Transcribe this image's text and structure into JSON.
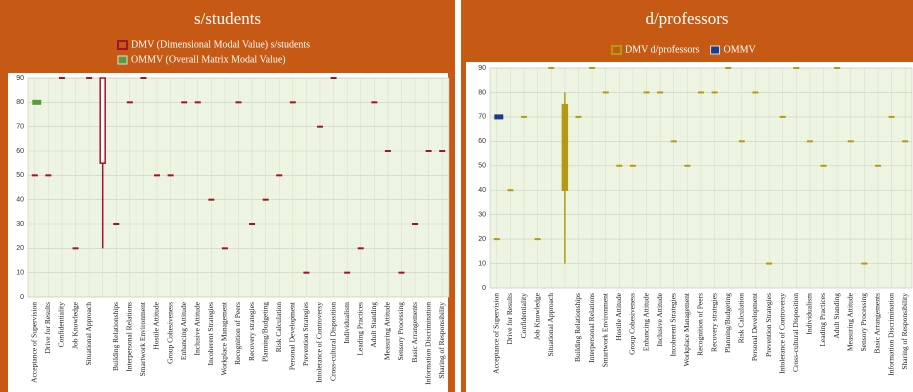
{
  "chart_data": [
    {
      "type": "marker",
      "title": "s/students",
      "categories": [
        "Acceptance of Supervision",
        "Drive for Results",
        "Confidentiality",
        "Job Knowledge",
        "Situational Approach",
        null,
        "Building Relationships",
        "Interpersonal Relations",
        "Smartwork Environment",
        "Hostile Attitude",
        "Group Cohesiveness",
        "Enhancing Attitude",
        "Inclusive Attitude",
        "Incoherent Strategies",
        "Workplace Management",
        "Recognition of Peers",
        "Recovery strategies",
        "Planning/Budgeting",
        "Risk Calculation",
        "Personal Development",
        "Prevention Strategies",
        "Intolerance of Controversy",
        "Cross-cultural Disposition",
        "Individualism",
        "Leading Practices",
        "Adult Standing",
        "Measuring Attitude",
        "Sensory Processing",
        "Basic Arrangements",
        "Information Discrimination",
        "Sharing of Responsibility"
      ],
      "series": [
        {
          "name": "DMV (Dimensional Modal Value) s/students",
          "color": "#a3122e",
          "values": [
            50,
            50,
            90,
            20,
            90,
            null,
            30,
            80,
            90,
            50,
            50,
            80,
            80,
            40,
            20,
            80,
            30,
            40,
            50,
            80,
            10,
            70,
            90,
            10,
            20,
            80,
            60,
            10,
            30,
            60,
            60
          ],
          "box": {
            "low": 20,
            "q1": 55,
            "q3": 90,
            "high": 90
          }
        },
        {
          "name": "OMMV (Overall Matrix Modal Value)",
          "color": "#5a9a3a",
          "values": [
            80,
            null,
            null,
            null,
            null,
            null,
            null,
            null,
            null,
            null,
            null,
            null,
            null,
            null,
            null,
            null,
            null,
            null,
            null,
            null,
            null,
            null,
            null,
            null,
            null,
            null,
            null,
            null,
            null,
            null,
            null
          ]
        }
      ],
      "ylim": [
        0,
        90
      ],
      "yticks": [
        0,
        10,
        20,
        30,
        40,
        50,
        60,
        70,
        80,
        90
      ],
      "grid": true,
      "legend": "top"
    },
    {
      "type": "marker",
      "title": "d/professors",
      "categories": [
        "Acceptance of Supervision",
        "Drive for Results",
        "Confidentiality",
        "Job Knowledge",
        "Situational Approach",
        null,
        "Building Relationships",
        "Interpersonal Relations",
        "Smartwork Environment",
        "Hostile Attitude",
        "Group Cohesiveness",
        "Enhancing Attitude",
        "Inclusive Attitude",
        "Incoherent Strategies",
        "Workplace Management",
        "Recognition of Peers",
        "Recovery strategies",
        "Planning/Budgeting",
        "Risk Calculation",
        "Personal Development",
        "Prevention Strategies",
        "Intolerance of Controversy",
        "Cross-cultural Disposition",
        "Individualism",
        "Leading Practices",
        "Adult Standing",
        "Measuring Attitude",
        "Sensory Processing",
        "Basic Arrangements",
        "Information Discrimination",
        "Sharing of Responsibility"
      ],
      "series": [
        {
          "name": "DMV d/professors",
          "color": "#b39a14",
          "values": [
            20,
            40,
            70,
            20,
            90,
            null,
            70,
            90,
            80,
            50,
            50,
            80,
            80,
            60,
            50,
            80,
            80,
            90,
            60,
            80,
            10,
            70,
            90,
            60,
            50,
            90,
            60,
            10,
            50,
            70,
            60
          ],
          "box": {
            "low": 10,
            "q1": 40,
            "q3": 75,
            "high": 80
          }
        },
        {
          "name": "OMMV",
          "color": "#1f3a8a",
          "values": [
            70,
            null,
            null,
            null,
            null,
            null,
            null,
            null,
            null,
            null,
            null,
            null,
            null,
            null,
            null,
            null,
            null,
            null,
            null,
            null,
            null,
            null,
            null,
            null,
            null,
            null,
            null,
            null,
            null,
            null,
            null
          ]
        }
      ],
      "ylim": [
        0,
        90
      ],
      "yticks": [
        0,
        10,
        20,
        30,
        40,
        50,
        60,
        70,
        80,
        90
      ],
      "grid": true,
      "legend": "top"
    }
  ]
}
